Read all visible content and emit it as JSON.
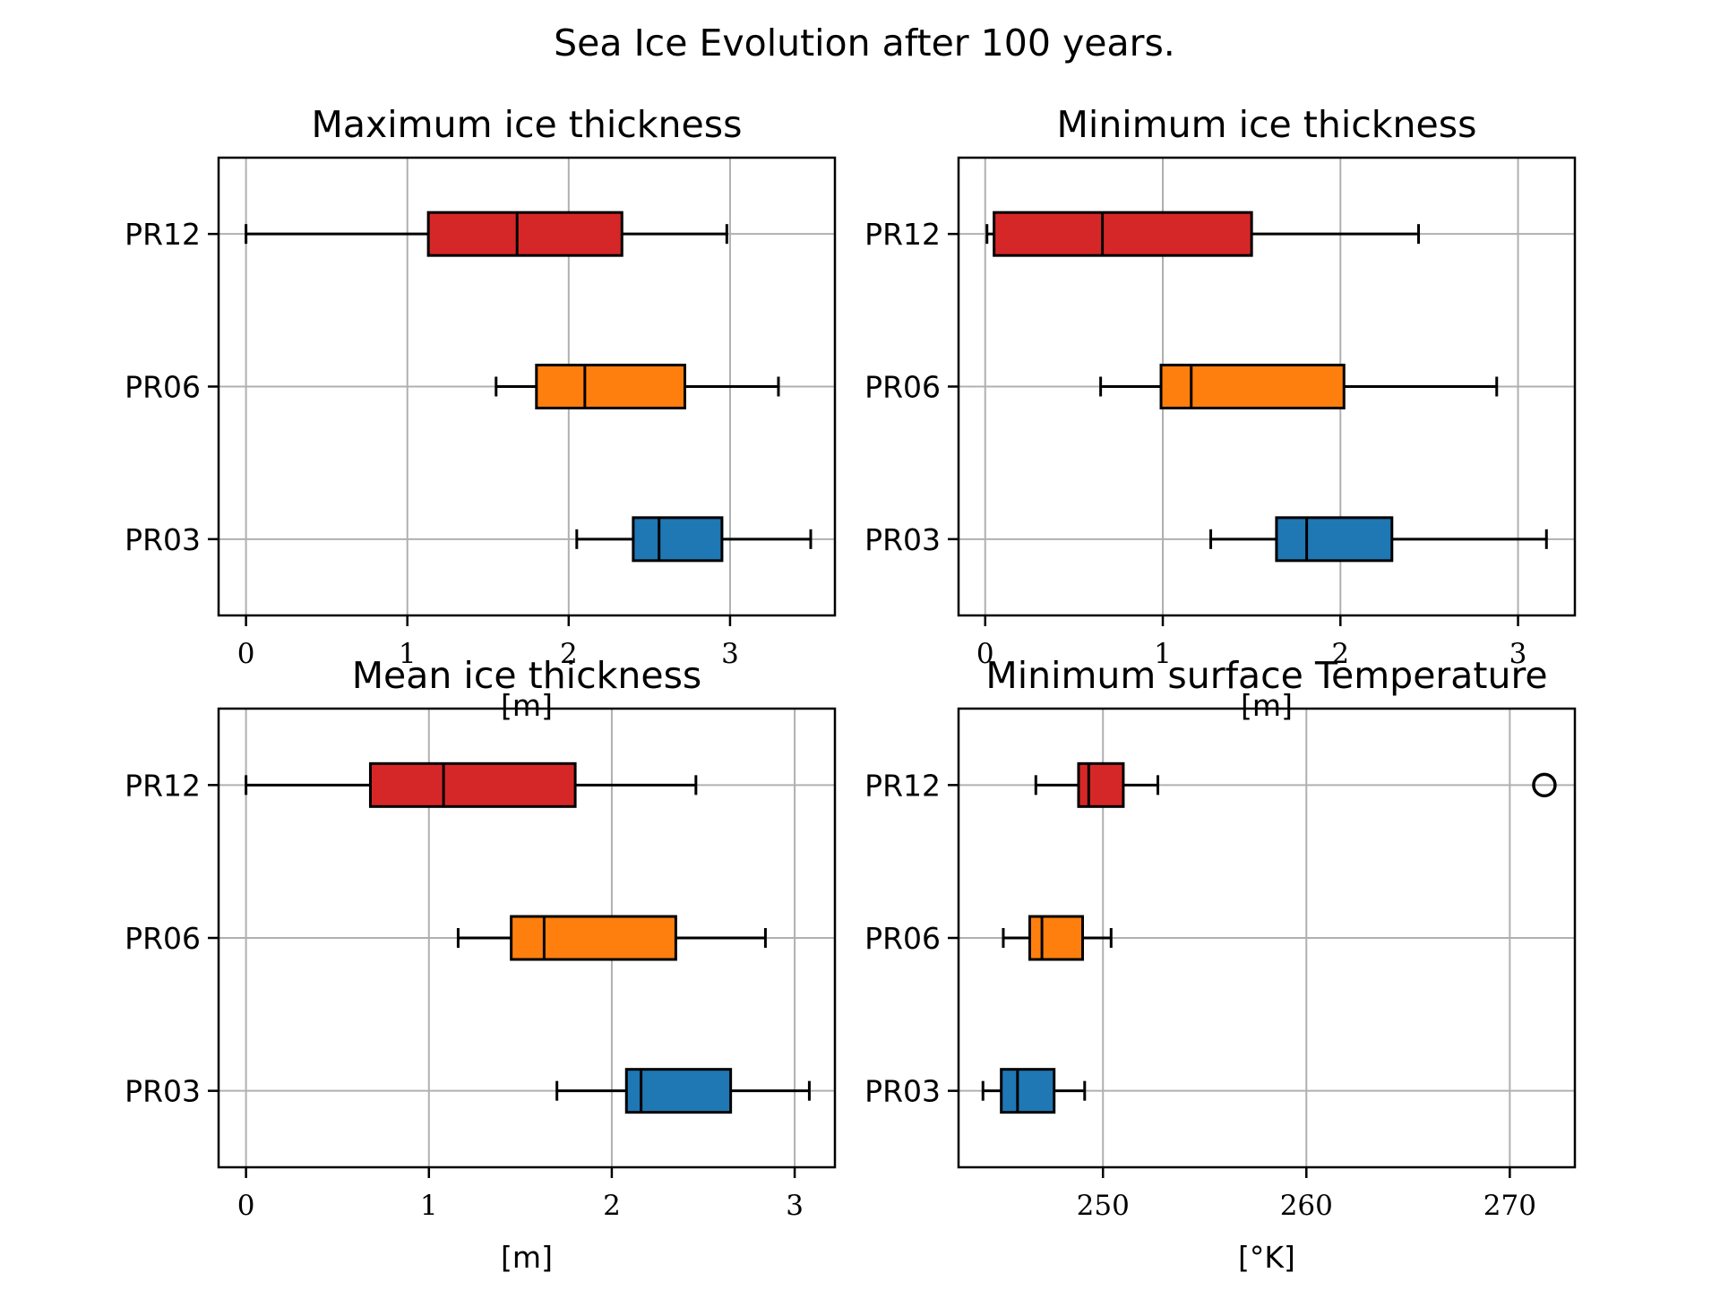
{
  "figure": {
    "title": "Sea Ice Evolution after 100 years."
  },
  "chart_data": [
    {
      "type": "boxplot",
      "title": "Maximum ice thickness",
      "xlabel": "[m]",
      "xlim": [
        -0.17,
        3.65
      ],
      "xticks": [
        0,
        1,
        2,
        3
      ],
      "grid": true,
      "categories": [
        "PR03",
        "PR06",
        "PR12"
      ],
      "boxes": [
        {
          "name": "PR03",
          "color": "#1f77b4",
          "whislo": 2.05,
          "q1": 2.4,
          "med": 2.56,
          "q3": 2.95,
          "whishi": 3.5,
          "fliers": []
        },
        {
          "name": "PR06",
          "color": "#ff7f0e",
          "whislo": 1.55,
          "q1": 1.8,
          "med": 2.1,
          "q3": 2.72,
          "whishi": 3.3,
          "fliers": []
        },
        {
          "name": "PR12",
          "color": "#d62728",
          "whislo": 0.0,
          "q1": 1.13,
          "med": 1.68,
          "q3": 2.33,
          "whishi": 2.98,
          "fliers": []
        }
      ]
    },
    {
      "type": "boxplot",
      "title": "Minimum ice thickness",
      "xlabel": "[m]",
      "xlim": [
        -0.15,
        3.32
      ],
      "xticks": [
        0,
        1,
        2,
        3
      ],
      "grid": true,
      "categories": [
        "PR03",
        "PR06",
        "PR12"
      ],
      "boxes": [
        {
          "name": "PR03",
          "color": "#1f77b4",
          "whislo": 1.27,
          "q1": 1.64,
          "med": 1.81,
          "q3": 2.29,
          "whishi": 3.16,
          "fliers": []
        },
        {
          "name": "PR06",
          "color": "#ff7f0e",
          "whislo": 0.65,
          "q1": 0.99,
          "med": 1.16,
          "q3": 2.02,
          "whishi": 2.88,
          "fliers": []
        },
        {
          "name": "PR12",
          "color": "#d62728",
          "whislo": 0.01,
          "q1": 0.05,
          "med": 0.66,
          "q3": 1.5,
          "whishi": 2.44,
          "fliers": []
        }
      ]
    },
    {
      "type": "boxplot",
      "title": "Mean ice thickness",
      "xlabel": "[m]",
      "xlim": [
        -0.15,
        3.22
      ],
      "xticks": [
        0,
        1,
        2,
        3
      ],
      "grid": true,
      "categories": [
        "PR03",
        "PR06",
        "PR12"
      ],
      "boxes": [
        {
          "name": "PR03",
          "color": "#1f77b4",
          "whislo": 1.7,
          "q1": 2.08,
          "med": 2.16,
          "q3": 2.65,
          "whishi": 3.08,
          "fliers": []
        },
        {
          "name": "PR06",
          "color": "#ff7f0e",
          "whislo": 1.16,
          "q1": 1.45,
          "med": 1.63,
          "q3": 2.35,
          "whishi": 2.84,
          "fliers": []
        },
        {
          "name": "PR12",
          "color": "#d62728",
          "whislo": 0.0,
          "q1": 0.68,
          "med": 1.08,
          "q3": 1.8,
          "whishi": 2.46,
          "fliers": []
        }
      ]
    },
    {
      "type": "boxplot",
      "title": "Minimum surface Temperature",
      "xlabel": "[°K]",
      "xlim": [
        242.9,
        273.2
      ],
      "xticks": [
        250,
        260,
        270
      ],
      "grid": true,
      "categories": [
        "PR03",
        "PR06",
        "PR12"
      ],
      "boxes": [
        {
          "name": "PR03",
          "color": "#1f77b4",
          "whislo": 244.1,
          "q1": 245.0,
          "med": 245.8,
          "q3": 247.6,
          "whishi": 249.1,
          "fliers": []
        },
        {
          "name": "PR06",
          "color": "#ff7f0e",
          "whislo": 245.1,
          "q1": 246.4,
          "med": 247.0,
          "q3": 249.0,
          "whishi": 250.4,
          "fliers": []
        },
        {
          "name": "PR12",
          "color": "#d62728",
          "whislo": 246.7,
          "q1": 248.8,
          "med": 249.3,
          "q3": 251.0,
          "whishi": 252.7,
          "fliers": [
            271.7
          ]
        }
      ]
    }
  ]
}
